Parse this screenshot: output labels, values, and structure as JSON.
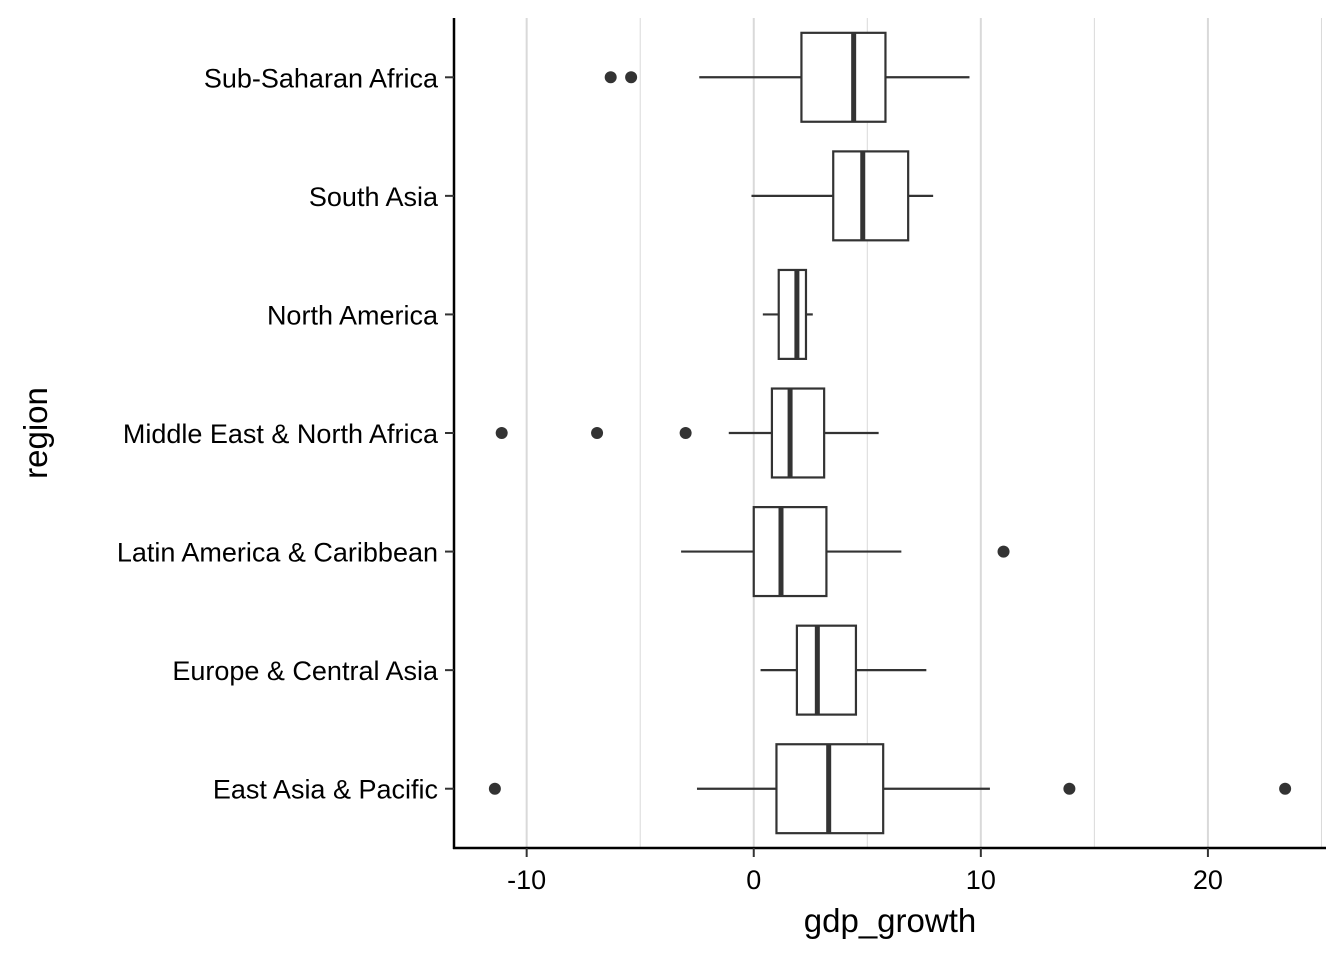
{
  "chart_data": {
    "type": "boxplot",
    "orientation": "horizontal",
    "xlabel": "gdp_growth",
    "ylabel": "region",
    "xlim": [
      -13.2,
      25.2
    ],
    "x_ticks": [
      -10,
      0,
      10,
      20
    ],
    "x_tick_labels": [
      "-10",
      "0",
      "10",
      "20"
    ],
    "grid": {
      "vertical": true,
      "horizontal": false
    },
    "legend": "none",
    "colors": {
      "box_stroke": "#333333",
      "grid": "#d9d9d9",
      "axis": "#000000",
      "background": "#ffffff"
    },
    "categories": [
      "East Asia & Pacific",
      "Europe & Central Asia",
      "Latin America & Caribbean",
      "Middle East & North Africa",
      "North America",
      "South Asia",
      "Sub-Saharan Africa"
    ],
    "boxes": [
      {
        "category": "East Asia & Pacific",
        "whisker_low": -2.5,
        "q1": 1.0,
        "median": 3.3,
        "q3": 5.7,
        "whisker_high": 10.4,
        "outliers": [
          -11.4,
          13.9,
          23.4
        ]
      },
      {
        "category": "Europe & Central Asia",
        "whisker_low": 0.3,
        "q1": 1.9,
        "median": 2.8,
        "q3": 4.5,
        "whisker_high": 7.6,
        "outliers": []
      },
      {
        "category": "Latin America & Caribbean",
        "whisker_low": -3.2,
        "q1": 0.0,
        "median": 1.2,
        "q3": 3.2,
        "whisker_high": 6.5,
        "outliers": [
          11.0
        ]
      },
      {
        "category": "Middle East & North Africa",
        "whisker_low": -1.1,
        "q1": 0.8,
        "median": 1.6,
        "q3": 3.1,
        "whisker_high": 5.5,
        "outliers": [
          -11.1,
          -6.9,
          -3.0
        ]
      },
      {
        "category": "North America",
        "whisker_low": 0.4,
        "q1": 1.1,
        "median": 1.9,
        "q3": 2.3,
        "whisker_high": 2.6,
        "outliers": []
      },
      {
        "category": "South Asia",
        "whisker_low": -0.1,
        "q1": 3.5,
        "median": 4.8,
        "q3": 6.8,
        "whisker_high": 7.9,
        "outliers": []
      },
      {
        "category": "Sub-Saharan Africa",
        "whisker_low": -2.4,
        "q1": 2.1,
        "median": 4.4,
        "q3": 5.8,
        "whisker_high": 9.5,
        "outliers": [
          -6.3,
          -5.4
        ]
      }
    ]
  }
}
